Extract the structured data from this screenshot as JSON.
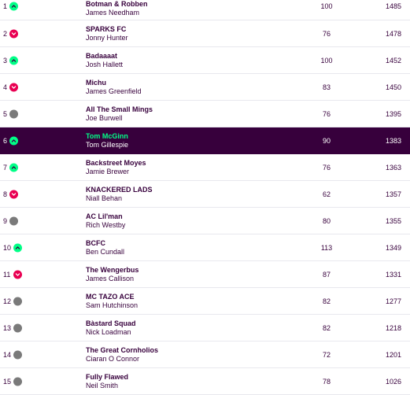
{
  "standings": [
    {
      "rank": "1",
      "movement": "up",
      "team": "Botman & Robben",
      "manager": "James Needham",
      "gw": "100",
      "total": "1485"
    },
    {
      "rank": "2",
      "movement": "down",
      "team": "SPARKS FC",
      "manager": "Jonny Hunter",
      "gw": "76",
      "total": "1478"
    },
    {
      "rank": "3",
      "movement": "up",
      "team": "Badaaaat",
      "manager": "Josh Hallett",
      "gw": "100",
      "total": "1452"
    },
    {
      "rank": "4",
      "movement": "down",
      "team": "Michu",
      "manager": "James Greenfield",
      "gw": "83",
      "total": "1450"
    },
    {
      "rank": "5",
      "movement": "same",
      "team": "All The Small Mings",
      "manager": "Joe Burwell",
      "gw": "76",
      "total": "1395"
    },
    {
      "rank": "6",
      "movement": "up",
      "team": "Tom McGinn",
      "manager": "Tom Gillespie",
      "gw": "90",
      "total": "1383",
      "highlight": true
    },
    {
      "rank": "7",
      "movement": "up",
      "team": "Backstreet Moyes",
      "manager": "Jamie Brewer",
      "gw": "76",
      "total": "1363"
    },
    {
      "rank": "8",
      "movement": "down",
      "team": "KNACKERED LADS",
      "manager": "Niall Behan",
      "gw": "62",
      "total": "1357"
    },
    {
      "rank": "9",
      "movement": "same",
      "team": "AC Lil'man",
      "manager": "Rich Westby",
      "gw": "80",
      "total": "1355"
    },
    {
      "rank": "10",
      "movement": "up",
      "team": "BCFC",
      "manager": "Ben Cundall",
      "gw": "113",
      "total": "1349"
    },
    {
      "rank": "11",
      "movement": "down",
      "team": "The Wengerbus",
      "manager": "James Callison",
      "gw": "87",
      "total": "1331"
    },
    {
      "rank": "12",
      "movement": "same",
      "team": "MC TAZO ACE",
      "manager": "Sam Hutchinson",
      "gw": "82",
      "total": "1277"
    },
    {
      "rank": "13",
      "movement": "same",
      "team": "Bàstard Squad",
      "manager": "Nick Loadman",
      "gw": "82",
      "total": "1218"
    },
    {
      "rank": "14",
      "movement": "same",
      "team": "The Great Cornholios",
      "manager": "Ciaran O Connor",
      "gw": "72",
      "total": "1201"
    },
    {
      "rank": "15",
      "movement": "same",
      "team": "Fully Flawed",
      "manager": "Neil Smith",
      "gw": "78",
      "total": "1026"
    }
  ],
  "colors": {
    "purple": "#37003c",
    "up": "#00ff87",
    "down": "#e90052",
    "same": "#7a7a7a"
  }
}
